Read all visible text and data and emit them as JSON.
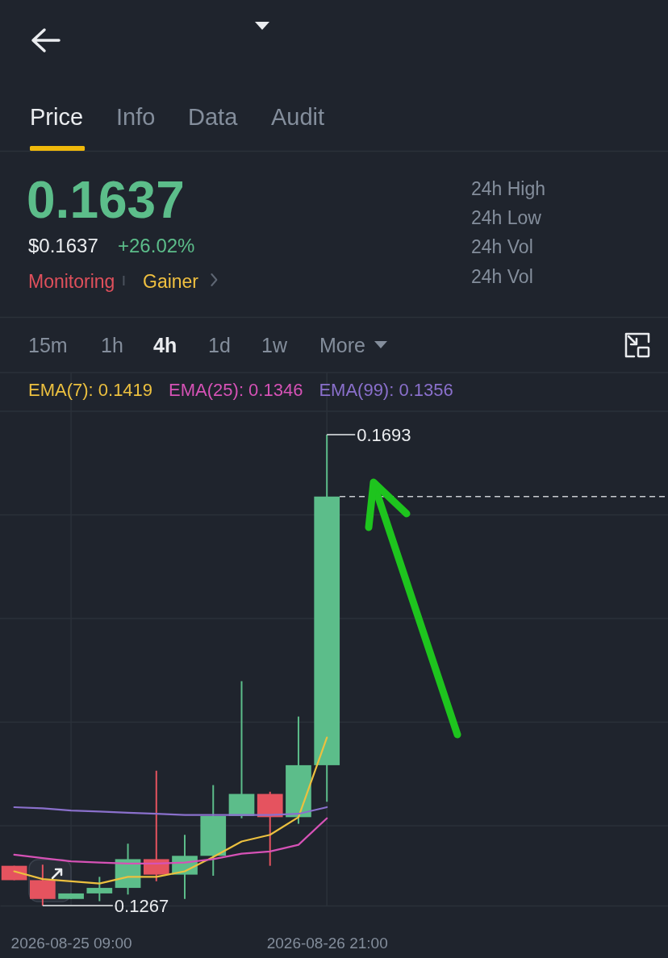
{
  "chart_data": {
    "type": "candlestick",
    "x": [
      "2026-08-25T01:00",
      "2026-08-25T05:00",
      "2026-08-25T09:00",
      "2026-08-25T13:00",
      "2026-08-25T17:00",
      "2026-08-25T21:00",
      "2026-08-26T01:00",
      "2026-08-26T05:00",
      "2026-08-26T09:00",
      "2026-08-26T13:00",
      "2026-08-26T17:00",
      "2026-08-26T21:00"
    ],
    "ohlc": [
      [
        0.1303,
        0.1303,
        0.129,
        0.129
      ],
      [
        0.129,
        0.1304,
        0.1267,
        0.1273
      ],
      [
        0.1273,
        0.1278,
        0.1273,
        0.1278
      ],
      [
        0.1278,
        0.1293,
        0.1271,
        0.1283
      ],
      [
        0.1283,
        0.1323,
        0.1277,
        0.1309
      ],
      [
        0.1309,
        0.1389,
        0.1289,
        0.1295
      ],
      [
        0.1295,
        0.1331,
        0.1273,
        0.1312
      ],
      [
        0.1312,
        0.1376,
        0.1294,
        0.1348
      ],
      [
        0.1348,
        0.147,
        0.1346,
        0.1368
      ],
      [
        0.1368,
        0.137,
        0.1303,
        0.1347
      ],
      [
        0.1347,
        0.1438,
        0.1341,
        0.1394
      ],
      [
        0.1394,
        0.1693,
        0.1361,
        0.1637
      ]
    ],
    "colors": [
      "#e5535f",
      "#e5535f",
      "#5cbd8a",
      "#5cbd8a",
      "#5cbd8a",
      "#e5535f",
      "#5cbd8a",
      "#5cbd8a",
      "#5cbd8a",
      "#e5535f",
      "#5cbd8a",
      "#5cbd8a"
    ],
    "series": [
      {
        "type": "line",
        "name": "EMA(7): 0.1419",
        "color": "#ecc03f",
        "values": [
          0.1298,
          0.1291,
          0.1289,
          0.1287,
          0.1293,
          0.1293,
          0.1298,
          0.1311,
          0.1325,
          0.1331,
          0.1347,
          0.1419
        ]
      },
      {
        "type": "line",
        "name": "EMA(25): 0.1346",
        "color": "#d652b6",
        "values": [
          0.1313,
          0.131,
          0.1307,
          0.1306,
          0.1305,
          0.1305,
          0.1306,
          0.1309,
          0.1314,
          0.1316,
          0.1322,
          0.1346
        ]
      },
      {
        "type": "line",
        "name": "EMA(99): 0.1356",
        "color": "#8a70cc",
        "values": [
          0.1356,
          0.1355,
          0.1353,
          0.1352,
          0.1351,
          0.135,
          0.1349,
          0.1349,
          0.1349,
          0.1349,
          0.135,
          0.1356
        ]
      }
    ],
    "xlim": [
      "2026-08-24T23:00",
      "2026-08-28T21:00"
    ],
    "xticks": [
      {
        "value": "2026-08-25T09:00",
        "label": "2026-08-25 09:00"
      },
      {
        "value": "2026-08-26T21:00",
        "label": "2026-08-26 21:00"
      }
    ],
    "tick_labels": "x",
    "grid": true,
    "legend": "top left",
    "ref_lines": [
      {
        "axis": "y",
        "value": 0.1637,
        "color": "#c9ccd1",
        "line_style": "dashed"
      }
    ],
    "annotations": [
      "Price",
      "Info",
      "Data",
      "Audit",
      "0.1637",
      "$0.1637",
      "+26.02%",
      "Monitoring",
      "Gainer",
      "24h High",
      "24h Low",
      "24h Vol",
      "24h Vol",
      "15m",
      "1h",
      "4h",
      "1d",
      "1w",
      "More",
      {
        "text": "0.1693",
        "x": "2026-08-26T21:00",
        "y": 0.1693
      },
      {
        "text": "0.1267",
        "x": "2026-08-25T05:00",
        "y": 0.1267
      }
    ]
  }
}
